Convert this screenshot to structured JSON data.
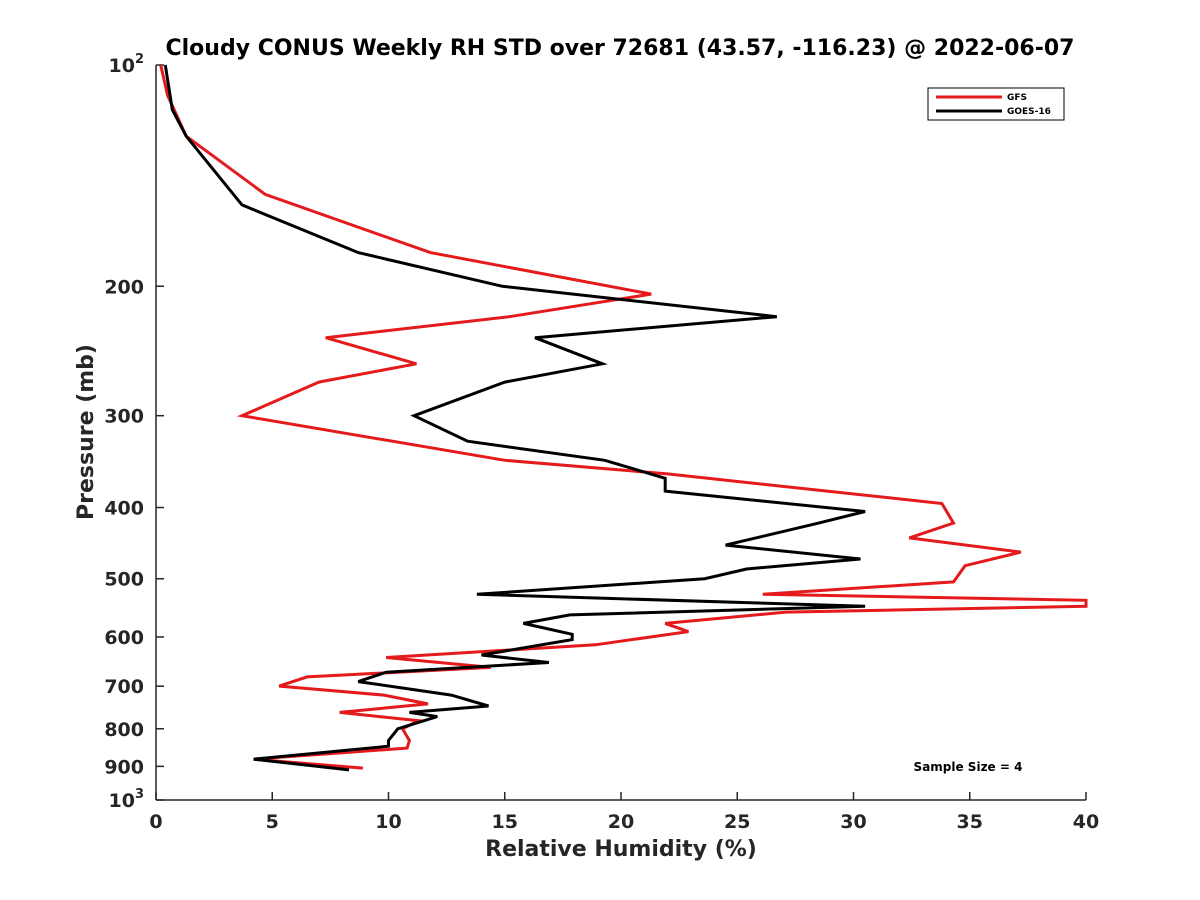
{
  "chart_data": {
    "type": "line",
    "title": "Cloudy CONUS Weekly RH STD over 72681 (43.57, -116.23) @ 2022-06-07",
    "xlabel": "Relative Humidity (%)",
    "ylabel": "Pressure (mb)",
    "xlim": [
      0,
      40
    ],
    "ylim": [
      100,
      1000
    ],
    "y_scale": "log",
    "y_reversed": true,
    "grid": false,
    "legend_position": "top-right",
    "x_ticks": [
      "0",
      "5",
      "10",
      "15",
      "20",
      "25",
      "30",
      "35",
      "40"
    ],
    "y_ticks": [
      {
        "value": 100,
        "label": "10",
        "sup": "2"
      },
      {
        "value": 200,
        "label": "200"
      },
      {
        "value": 300,
        "label": "300"
      },
      {
        "value": 400,
        "label": "400"
      },
      {
        "value": 500,
        "label": "500"
      },
      {
        "value": 600,
        "label": "600"
      },
      {
        "value": 700,
        "label": "700"
      },
      {
        "value": 800,
        "label": "800"
      },
      {
        "value": 900,
        "label": "900"
      },
      {
        "value": 1000,
        "label": "10",
        "sup": "3"
      }
    ],
    "series": [
      {
        "name": "GFS",
        "color": "#e41a1c",
        "points": [
          [
            0.2,
            100
          ],
          [
            0.5,
            110
          ],
          [
            1.3,
            125
          ],
          [
            4.7,
            150
          ],
          [
            11.8,
            180
          ],
          [
            21.3,
            205
          ],
          [
            15.2,
            220
          ],
          [
            7.3,
            235
          ],
          [
            11.2,
            255
          ],
          [
            7.0,
            270
          ],
          [
            3.7,
            300
          ],
          [
            15.0,
            345
          ],
          [
            22.0,
            360
          ],
          [
            33.8,
            395
          ],
          [
            34.3,
            420
          ],
          [
            32.4,
            440
          ],
          [
            37.2,
            460
          ],
          [
            34.8,
            480
          ],
          [
            34.3,
            505
          ],
          [
            26.1,
            525
          ],
          [
            40,
            535
          ],
          [
            40,
            545
          ],
          [
            27.1,
            555
          ],
          [
            21.9,
            575
          ],
          [
            22.9,
            590
          ],
          [
            18.9,
            615
          ],
          [
            9.9,
            640
          ],
          [
            14.4,
            660
          ],
          [
            6.5,
            680
          ],
          [
            5.3,
            700
          ],
          [
            9.8,
            720
          ],
          [
            11.7,
            740
          ],
          [
            7.9,
            760
          ],
          [
            11.3,
            780
          ],
          [
            10.6,
            800
          ],
          [
            10.9,
            830
          ],
          [
            10.8,
            850
          ],
          [
            4.2,
            880
          ],
          [
            8.9,
            905
          ]
        ]
      },
      {
        "name": "GOES-16",
        "color": "#000000",
        "points": [
          [
            0.4,
            100
          ],
          [
            0.7,
            115
          ],
          [
            1.3,
            125
          ],
          [
            3.7,
            155
          ],
          [
            8.7,
            180
          ],
          [
            14.9,
            200
          ],
          [
            26.7,
            220
          ],
          [
            16.3,
            235
          ],
          [
            19.2,
            255
          ],
          [
            15.0,
            270
          ],
          [
            11.1,
            300
          ],
          [
            13.4,
            325
          ],
          [
            19.3,
            345
          ],
          [
            21.9,
            365
          ],
          [
            21.9,
            380
          ],
          [
            30.5,
            405
          ],
          [
            28.5,
            420
          ],
          [
            24.5,
            450
          ],
          [
            30.3,
            470
          ],
          [
            25.4,
            485
          ],
          [
            23.6,
            500
          ],
          [
            13.8,
            525
          ],
          [
            30.5,
            545
          ],
          [
            17.8,
            560
          ],
          [
            15.8,
            575
          ],
          [
            17.9,
            595
          ],
          [
            17.9,
            605
          ],
          [
            14.0,
            635
          ],
          [
            16.9,
            650
          ],
          [
            9.9,
            670
          ],
          [
            8.7,
            690
          ],
          [
            12.7,
            720
          ],
          [
            14.3,
            745
          ],
          [
            10.9,
            760
          ],
          [
            12.1,
            770
          ],
          [
            10.4,
            800
          ],
          [
            10.0,
            830
          ],
          [
            10.0,
            845
          ],
          [
            4.2,
            880
          ],
          [
            8.3,
            910
          ]
        ]
      }
    ],
    "annotation": "Sample Size = 4"
  }
}
